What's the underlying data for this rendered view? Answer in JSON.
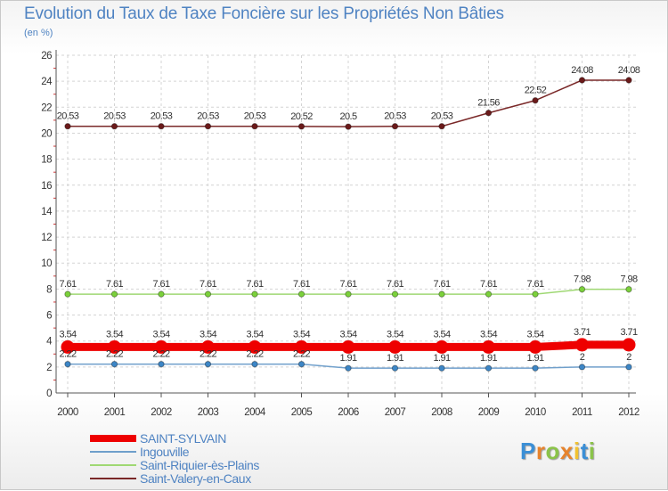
{
  "title": "Evolution du Taux de Taxe Foncière sur les Propriétés Non Bâties",
  "unit_label": "(en %)",
  "logo": {
    "text": "Proxiti",
    "letters": [
      "P",
      "r",
      "o",
      "x",
      "i",
      "t",
      "i"
    ],
    "colors": [
      "#3b8fd6",
      "#e7832c",
      "#8bc34a",
      "#e7832c",
      "#f2c230",
      "#3b8fd6",
      "#8bc34a"
    ]
  },
  "chart_data": {
    "type": "line",
    "title": "Evolution du Taux de Taxe Foncière sur les Propriétés Non Bâties",
    "ylabel": "(en %)",
    "xlabel": "",
    "ylim": [
      0,
      26
    ],
    "yticks": [
      0,
      2,
      4,
      6,
      8,
      10,
      12,
      14,
      16,
      18,
      20,
      22,
      24,
      26
    ],
    "categories": [
      "2000",
      "2001",
      "2002",
      "2003",
      "2004",
      "2005",
      "2006",
      "2007",
      "2008",
      "2009",
      "2010",
      "2011",
      "2012"
    ],
    "grid": true,
    "legend_position": "bottom-left",
    "series": [
      {
        "name": "Saint-Valery-en-Caux",
        "color": "#6b1a1a",
        "line_color": "#7a2828",
        "width": 1.5,
        "values": [
          20.53,
          20.53,
          20.53,
          20.53,
          20.53,
          20.52,
          20.5,
          20.53,
          20.53,
          21.56,
          22.52,
          24.08,
          24.08
        ],
        "labels": [
          "20.53",
          "20.53",
          "20.53",
          "20.53",
          "20.53",
          "20.52",
          "20.5",
          "20.53",
          "20.53",
          "21.56",
          "22.52",
          "24.08",
          "24.08"
        ]
      },
      {
        "name": "Saint-Riquier-ès-Plains",
        "color": "#7bd13b",
        "line_color": "#9fd873",
        "width": 1.5,
        "values": [
          7.61,
          7.61,
          7.61,
          7.61,
          7.61,
          7.61,
          7.61,
          7.61,
          7.61,
          7.61,
          7.61,
          7.98,
          7.98
        ],
        "labels": [
          "7.61",
          "7.61",
          "7.61",
          "7.61",
          "7.61",
          "7.61",
          "7.61",
          "7.61",
          "7.61",
          "7.61",
          "7.61",
          "7.98",
          "7.98"
        ]
      },
      {
        "name": "SAINT-SYLVAIN",
        "color": "#ee0000",
        "line_color": "#ee0000",
        "width": 9,
        "values": [
          3.54,
          3.54,
          3.54,
          3.54,
          3.54,
          3.54,
          3.54,
          3.54,
          3.54,
          3.54,
          3.54,
          3.71,
          3.71
        ],
        "labels": [
          "3.54",
          "3.54",
          "3.54",
          "3.54",
          "3.54",
          "3.54",
          "3.54",
          "3.54",
          "3.54",
          "3.54",
          "3.54",
          "3.71",
          "3.71"
        ]
      },
      {
        "name": "Ingouville",
        "color": "#3d86c6",
        "line_color": "#6f9fcb",
        "width": 1.5,
        "values": [
          2.22,
          2.22,
          2.22,
          2.22,
          2.22,
          2.22,
          1.91,
          1.91,
          1.91,
          1.91,
          1.91,
          2,
          2
        ],
        "labels": [
          "2.22",
          "2.22",
          "2.22",
          "2.22",
          "2.22",
          "2.22",
          "1.91",
          "1.91",
          "1.91",
          "1.91",
          "1.91",
          "2",
          "2"
        ]
      }
    ],
    "legend": [
      "SAINT-SYLVAIN",
      "Ingouville",
      "Saint-Riquier-ès-Plains",
      "Saint-Valery-en-Caux"
    ]
  }
}
